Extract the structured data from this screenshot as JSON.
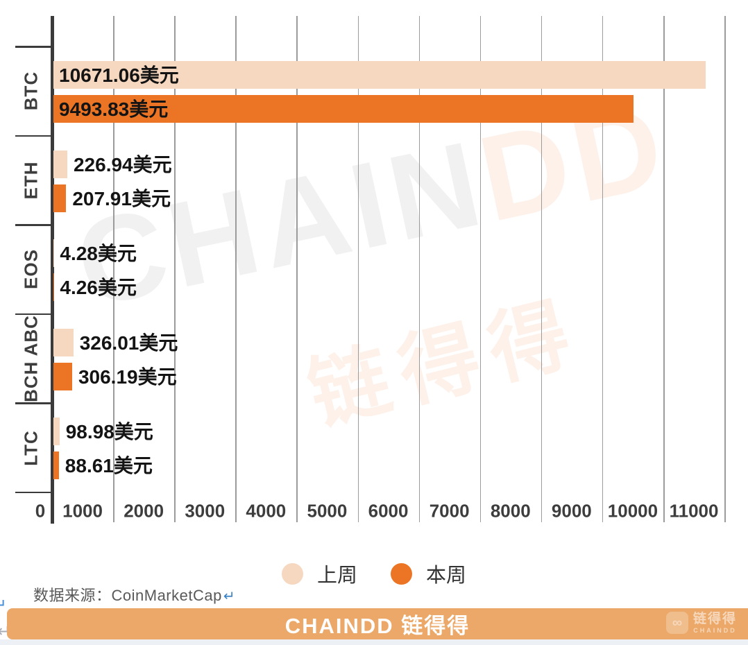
{
  "page": {
    "return_mark_blue": "↵",
    "return_mark_gray": "↵"
  },
  "watermark": {
    "en_gray": "CHAIN",
    "en_orange": "DD",
    "cn": "链得得"
  },
  "chart_data": {
    "type": "bar",
    "orientation": "horizontal",
    "title": "",
    "categories": [
      "BTC",
      "ETH",
      "EOS",
      "BCH ABC",
      "LTC"
    ],
    "series": [
      {
        "name": "上周",
        "color": "#F6D8C0",
        "values": [
          10671.06,
          226.94,
          4.28,
          326.01,
          98.98
        ],
        "labels": [
          "10671.06美元",
          "226.94美元",
          "4.28美元",
          "326.01美元",
          "98.98美元"
        ]
      },
      {
        "name": "本周",
        "color": "#EB7524",
        "values": [
          9493.83,
          207.91,
          4.26,
          306.19,
          88.61
        ],
        "labels": [
          "9493.83美元",
          "207.91美元",
          "4.26美元",
          "306.19美元",
          "88.61美元"
        ]
      }
    ],
    "value_suffix": "美元",
    "x_ticks": [
      0,
      1000,
      2000,
      3000,
      4000,
      5000,
      6000,
      7000,
      8000,
      9000,
      10000,
      11000
    ],
    "xlim": [
      0,
      11400
    ],
    "grid": true,
    "legend_position": "bottom-center"
  },
  "legend": {
    "items": [
      {
        "label": "上周",
        "color": "#F6D8C0"
      },
      {
        "label": "本周",
        "color": "#EB7524"
      }
    ]
  },
  "source": {
    "text": "数据来源：CoinMarketCap",
    "return_mark": "↵"
  },
  "footer": {
    "brand": "CHAINDD 链得得",
    "logo": {
      "icon": "chain-link",
      "name": "链得得",
      "subtext": "CHAINDD"
    },
    "background": "#EBA868"
  }
}
